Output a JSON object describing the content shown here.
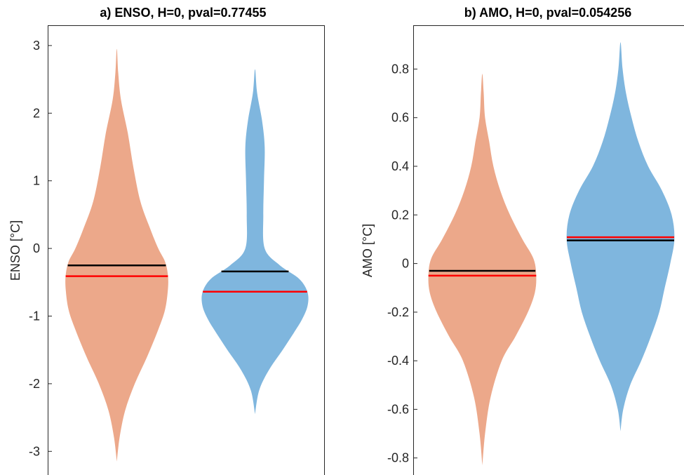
{
  "chart_data": [
    {
      "type": "violin",
      "title": "a)  ENSO, H=0, pval=0.77455",
      "ylabel": "ENSO [°C]",
      "xlabel": "",
      "ylim": [
        -3.35,
        3.3
      ],
      "yticks": [
        3,
        2,
        1,
        0,
        -1,
        -2,
        -3
      ],
      "ytick_labels": [
        "3",
        "2",
        "1",
        "0",
        "-1",
        "-2",
        "-3"
      ],
      "grid": false,
      "violins": [
        {
          "color": "#eca88a",
          "center": 1,
          "black_line": -0.25,
          "red_line": -0.41,
          "profile": [
            [
              -3.15,
              0.0
            ],
            [
              -2.8,
              0.02
            ],
            [
              -2.4,
              0.06
            ],
            [
              -2.0,
              0.13
            ],
            [
              -1.6,
              0.22
            ],
            [
              -1.2,
              0.3
            ],
            [
              -0.9,
              0.35
            ],
            [
              -0.6,
              0.37
            ],
            [
              -0.4,
              0.37
            ],
            [
              -0.2,
              0.35
            ],
            [
              0.0,
              0.3
            ],
            [
              0.3,
              0.24
            ],
            [
              0.7,
              0.17
            ],
            [
              1.2,
              0.12
            ],
            [
              1.7,
              0.08
            ],
            [
              2.2,
              0.03
            ],
            [
              2.6,
              0.01
            ],
            [
              2.95,
              0.0
            ]
          ]
        },
        {
          "color": "#7fb6de",
          "center": 2,
          "black_line": -0.34,
          "red_line": -0.64,
          "profile": [
            [
              -2.45,
              0.0
            ],
            [
              -2.1,
              0.03
            ],
            [
              -1.8,
              0.1
            ],
            [
              -1.5,
              0.2
            ],
            [
              -1.25,
              0.28
            ],
            [
              -1.05,
              0.34
            ],
            [
              -0.85,
              0.38
            ],
            [
              -0.65,
              0.38
            ],
            [
              -0.45,
              0.32
            ],
            [
              -0.25,
              0.18
            ],
            [
              0.0,
              0.07
            ],
            [
              0.5,
              0.06
            ],
            [
              1.0,
              0.065
            ],
            [
              1.5,
              0.07
            ],
            [
              1.9,
              0.05
            ],
            [
              2.3,
              0.015
            ],
            [
              2.65,
              0.0
            ]
          ]
        }
      ]
    },
    {
      "type": "violin",
      "title": "b)  AMO, H=0, pval=0.054256",
      "ylabel": "AMO [°C]",
      "xlabel": "",
      "ylim": [
        -0.87,
        0.98
      ],
      "yticks": [
        0.8,
        0.6,
        0.4,
        0.2,
        0,
        -0.2,
        -0.4,
        -0.6,
        -0.8
      ],
      "ytick_labels": [
        "0.8",
        "0.6",
        "0.4",
        "0.2",
        "0",
        "-0.2",
        "-0.4",
        "-0.6",
        "-0.8"
      ],
      "grid": false,
      "violins": [
        {
          "color": "#eca88a",
          "center": 1,
          "black_line": -0.03,
          "red_line": -0.05,
          "profile": [
            [
              -0.83,
              0.0
            ],
            [
              -0.7,
              0.02
            ],
            [
              -0.55,
              0.06
            ],
            [
              -0.4,
              0.14
            ],
            [
              -0.3,
              0.24
            ],
            [
              -0.2,
              0.33
            ],
            [
              -0.12,
              0.38
            ],
            [
              -0.05,
              0.39
            ],
            [
              0.02,
              0.37
            ],
            [
              0.1,
              0.29
            ],
            [
              0.2,
              0.2
            ],
            [
              0.3,
              0.13
            ],
            [
              0.4,
              0.08
            ],
            [
              0.5,
              0.05
            ],
            [
              0.6,
              0.02
            ],
            [
              0.7,
              0.01
            ],
            [
              0.78,
              0.0
            ]
          ]
        },
        {
          "color": "#7fb6de",
          "center": 2,
          "black_line": 0.095,
          "red_line": 0.108,
          "profile": [
            [
              -0.69,
              0.0
            ],
            [
              -0.6,
              0.02
            ],
            [
              -0.5,
              0.07
            ],
            [
              -0.4,
              0.15
            ],
            [
              -0.3,
              0.22
            ],
            [
              -0.2,
              0.28
            ],
            [
              -0.1,
              0.32
            ],
            [
              0.0,
              0.36
            ],
            [
              0.1,
              0.39
            ],
            [
              0.2,
              0.37
            ],
            [
              0.3,
              0.3
            ],
            [
              0.4,
              0.2
            ],
            [
              0.5,
              0.13
            ],
            [
              0.6,
              0.08
            ],
            [
              0.7,
              0.04
            ],
            [
              0.8,
              0.015
            ],
            [
              0.91,
              0.0
            ]
          ]
        }
      ]
    }
  ]
}
